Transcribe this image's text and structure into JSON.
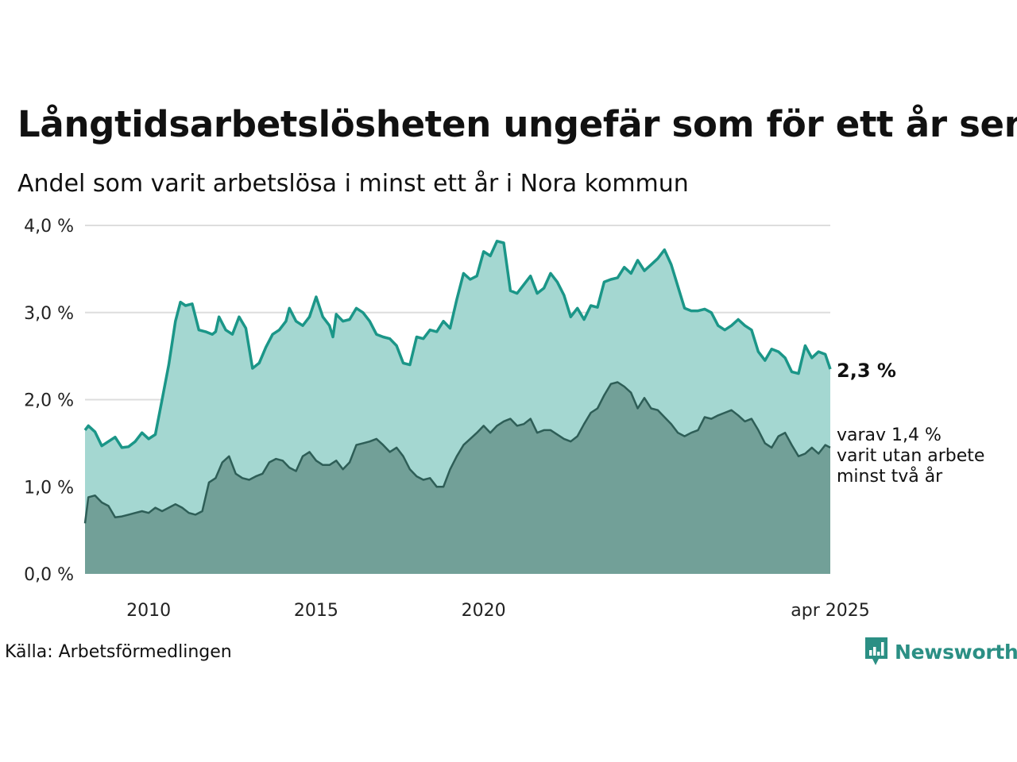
{
  "title": "Långtidsarbetslösheten ungefär som för ett år sen",
  "subtitle": "Andel som varit arbetslösa i minst ett år i Nora kommun",
  "source": "Källa: Arbetsförmedlingen",
  "brand": "Newsworthy",
  "colors": {
    "upper_line": "#1b9688",
    "upper_fill": "#a4d7d1",
    "lower_line": "#2e5e57",
    "lower_fill": "#72a098",
    "grid": "#dddddd",
    "brand": "#2b8f84"
  },
  "chart_data": {
    "type": "area",
    "ylim": [
      0,
      4
    ],
    "ytick_labels": [
      "0,0 %",
      "1,0 %",
      "2,0 %",
      "3,0 %",
      "4,0 %"
    ],
    "xtick_labels": [
      "2010",
      "2015",
      "2020",
      "apr 2025"
    ],
    "grid": "horizontal",
    "series": [
      {
        "name": "Andel som varit arbetslösa i minst ett år",
        "end_label": "2,3 %",
        "points": [
          [
            2008.1,
            1.65
          ],
          [
            2008.2,
            1.7
          ],
          [
            2008.4,
            1.63
          ],
          [
            2008.6,
            1.47
          ],
          [
            2008.8,
            1.52
          ],
          [
            2009.0,
            1.57
          ],
          [
            2009.2,
            1.45
          ],
          [
            2009.4,
            1.46
          ],
          [
            2009.6,
            1.52
          ],
          [
            2009.8,
            1.62
          ],
          [
            2010.0,
            1.55
          ],
          [
            2010.2,
            1.6
          ],
          [
            2010.4,
            2.0
          ],
          [
            2010.6,
            2.4
          ],
          [
            2010.8,
            2.9
          ],
          [
            2010.95,
            3.12
          ],
          [
            2011.1,
            3.08
          ],
          [
            2011.3,
            3.1
          ],
          [
            2011.5,
            2.8
          ],
          [
            2011.7,
            2.78
          ],
          [
            2011.9,
            2.75
          ],
          [
            2012.0,
            2.78
          ],
          [
            2012.1,
            2.95
          ],
          [
            2012.3,
            2.8
          ],
          [
            2012.5,
            2.75
          ],
          [
            2012.7,
            2.95
          ],
          [
            2012.9,
            2.82
          ],
          [
            2013.1,
            2.36
          ],
          [
            2013.3,
            2.42
          ],
          [
            2013.5,
            2.6
          ],
          [
            2013.7,
            2.75
          ],
          [
            2013.9,
            2.8
          ],
          [
            2014.1,
            2.9
          ],
          [
            2014.2,
            3.05
          ],
          [
            2014.4,
            2.9
          ],
          [
            2014.6,
            2.85
          ],
          [
            2014.8,
            2.95
          ],
          [
            2015.0,
            3.18
          ],
          [
            2015.2,
            2.95
          ],
          [
            2015.4,
            2.85
          ],
          [
            2015.5,
            2.72
          ],
          [
            2015.6,
            2.98
          ],
          [
            2015.8,
            2.9
          ],
          [
            2016.0,
            2.92
          ],
          [
            2016.2,
            3.05
          ],
          [
            2016.4,
            3.0
          ],
          [
            2016.6,
            2.9
          ],
          [
            2016.8,
            2.75
          ],
          [
            2017.0,
            2.72
          ],
          [
            2017.2,
            2.7
          ],
          [
            2017.4,
            2.62
          ],
          [
            2017.6,
            2.42
          ],
          [
            2017.8,
            2.4
          ],
          [
            2018.0,
            2.72
          ],
          [
            2018.2,
            2.7
          ],
          [
            2018.4,
            2.8
          ],
          [
            2018.6,
            2.78
          ],
          [
            2018.8,
            2.9
          ],
          [
            2019.0,
            2.82
          ],
          [
            2019.2,
            3.15
          ],
          [
            2019.4,
            3.45
          ],
          [
            2019.6,
            3.38
          ],
          [
            2019.8,
            3.42
          ],
          [
            2020.0,
            3.7
          ],
          [
            2020.2,
            3.65
          ],
          [
            2020.4,
            3.82
          ],
          [
            2020.6,
            3.8
          ],
          [
            2020.8,
            3.25
          ],
          [
            2021.0,
            3.22
          ],
          [
            2021.2,
            3.32
          ],
          [
            2021.4,
            3.42
          ],
          [
            2021.6,
            3.22
          ],
          [
            2021.8,
            3.28
          ],
          [
            2022.0,
            3.45
          ],
          [
            2022.2,
            3.35
          ],
          [
            2022.4,
            3.2
          ],
          [
            2022.6,
            2.95
          ],
          [
            2022.8,
            3.05
          ],
          [
            2023.0,
            2.92
          ],
          [
            2023.2,
            3.08
          ],
          [
            2023.4,
            3.06
          ],
          [
            2023.6,
            3.35
          ],
          [
            2023.8,
            3.38
          ],
          [
            2024.0,
            3.4
          ],
          [
            2024.2,
            3.52
          ],
          [
            2024.4,
            3.45
          ],
          [
            2024.6,
            3.6
          ],
          [
            2024.8,
            3.48
          ],
          [
            2025.0,
            3.55
          ],
          [
            2025.2,
            3.62
          ],
          [
            2025.4,
            3.72
          ],
          [
            2025.6,
            3.55
          ],
          [
            2025.8,
            3.3
          ],
          [
            2026.0,
            3.05
          ],
          [
            2026.2,
            3.02
          ],
          [
            2026.4,
            3.02
          ],
          [
            2026.6,
            3.04
          ],
          [
            2026.8,
            3.0
          ],
          [
            2027.0,
            2.85
          ],
          [
            2027.2,
            2.8
          ],
          [
            2027.4,
            2.85
          ],
          [
            2027.6,
            2.92
          ],
          [
            2027.8,
            2.85
          ],
          [
            2028.0,
            2.8
          ],
          [
            2028.2,
            2.55
          ],
          [
            2028.4,
            2.45
          ],
          [
            2028.6,
            2.58
          ],
          [
            2028.8,
            2.55
          ],
          [
            2029.0,
            2.48
          ],
          [
            2029.2,
            2.32
          ],
          [
            2029.4,
            2.3
          ],
          [
            2029.6,
            2.62
          ],
          [
            2029.8,
            2.48
          ],
          [
            2030.0,
            2.55
          ],
          [
            2030.2,
            2.52
          ],
          [
            2030.35,
            2.35
          ]
        ]
      },
      {
        "name": "varav varit utan arbete minst två år",
        "end_label": [
          "varav 1,4 %",
          "varit utan arbete",
          "minst två år"
        ],
        "points": [
          [
            2008.1,
            0.58
          ],
          [
            2008.2,
            0.88
          ],
          [
            2008.4,
            0.9
          ],
          [
            2008.6,
            0.82
          ],
          [
            2008.8,
            0.78
          ],
          [
            2009.0,
            0.65
          ],
          [
            2009.2,
            0.66
          ],
          [
            2009.4,
            0.68
          ],
          [
            2009.6,
            0.7
          ],
          [
            2009.8,
            0.72
          ],
          [
            2010.0,
            0.7
          ],
          [
            2010.2,
            0.76
          ],
          [
            2010.4,
            0.72
          ],
          [
            2010.6,
            0.76
          ],
          [
            2010.8,
            0.8
          ],
          [
            2011.0,
            0.76
          ],
          [
            2011.2,
            0.7
          ],
          [
            2011.4,
            0.68
          ],
          [
            2011.6,
            0.72
          ],
          [
            2011.8,
            1.05
          ],
          [
            2012.0,
            1.1
          ],
          [
            2012.2,
            1.28
          ],
          [
            2012.4,
            1.35
          ],
          [
            2012.6,
            1.15
          ],
          [
            2012.8,
            1.1
          ],
          [
            2013.0,
            1.08
          ],
          [
            2013.2,
            1.12
          ],
          [
            2013.4,
            1.15
          ],
          [
            2013.6,
            1.28
          ],
          [
            2013.8,
            1.32
          ],
          [
            2014.0,
            1.3
          ],
          [
            2014.2,
            1.22
          ],
          [
            2014.4,
            1.18
          ],
          [
            2014.6,
            1.35
          ],
          [
            2014.8,
            1.4
          ],
          [
            2015.0,
            1.3
          ],
          [
            2015.2,
            1.25
          ],
          [
            2015.4,
            1.25
          ],
          [
            2015.6,
            1.3
          ],
          [
            2015.8,
            1.2
          ],
          [
            2016.0,
            1.28
          ],
          [
            2016.2,
            1.48
          ],
          [
            2016.4,
            1.5
          ],
          [
            2016.6,
            1.52
          ],
          [
            2016.8,
            1.55
          ],
          [
            2017.0,
            1.48
          ],
          [
            2017.2,
            1.4
          ],
          [
            2017.4,
            1.45
          ],
          [
            2017.6,
            1.35
          ],
          [
            2017.8,
            1.2
          ],
          [
            2018.0,
            1.12
          ],
          [
            2018.2,
            1.08
          ],
          [
            2018.4,
            1.1
          ],
          [
            2018.6,
            1.0
          ],
          [
            2018.8,
            1.0
          ],
          [
            2019.0,
            1.2
          ],
          [
            2019.2,
            1.35
          ],
          [
            2019.4,
            1.48
          ],
          [
            2019.6,
            1.55
          ],
          [
            2019.8,
            1.62
          ],
          [
            2020.0,
            1.7
          ],
          [
            2020.2,
            1.62
          ],
          [
            2020.4,
            1.7
          ],
          [
            2020.6,
            1.75
          ],
          [
            2020.8,
            1.78
          ],
          [
            2021.0,
            1.7
          ],
          [
            2021.2,
            1.72
          ],
          [
            2021.4,
            1.78
          ],
          [
            2021.6,
            1.62
          ],
          [
            2021.8,
            1.65
          ],
          [
            2022.0,
            1.65
          ],
          [
            2022.2,
            1.6
          ],
          [
            2022.4,
            1.55
          ],
          [
            2022.6,
            1.52
          ],
          [
            2022.8,
            1.58
          ],
          [
            2023.0,
            1.72
          ],
          [
            2023.2,
            1.85
          ],
          [
            2023.4,
            1.9
          ],
          [
            2023.6,
            2.05
          ],
          [
            2023.8,
            2.18
          ],
          [
            2024.0,
            2.2
          ],
          [
            2024.2,
            2.15
          ],
          [
            2024.4,
            2.08
          ],
          [
            2024.6,
            1.9
          ],
          [
            2024.8,
            2.02
          ],
          [
            2025.0,
            1.9
          ],
          [
            2025.2,
            1.88
          ],
          [
            2025.4,
            1.8
          ],
          [
            2025.6,
            1.72
          ],
          [
            2025.8,
            1.62
          ],
          [
            2026.0,
            1.58
          ],
          [
            2026.2,
            1.62
          ],
          [
            2026.4,
            1.65
          ],
          [
            2026.6,
            1.8
          ],
          [
            2026.8,
            1.78
          ],
          [
            2027.0,
            1.82
          ],
          [
            2027.2,
            1.85
          ],
          [
            2027.4,
            1.88
          ],
          [
            2027.6,
            1.82
          ],
          [
            2027.8,
            1.75
          ],
          [
            2028.0,
            1.78
          ],
          [
            2028.2,
            1.65
          ],
          [
            2028.4,
            1.5
          ],
          [
            2028.6,
            1.45
          ],
          [
            2028.8,
            1.58
          ],
          [
            2029.0,
            1.62
          ],
          [
            2029.2,
            1.48
          ],
          [
            2029.4,
            1.35
          ],
          [
            2029.6,
            1.38
          ],
          [
            2029.8,
            1.45
          ],
          [
            2030.0,
            1.38
          ],
          [
            2030.2,
            1.48
          ],
          [
            2030.35,
            1.45
          ]
        ]
      }
    ]
  }
}
